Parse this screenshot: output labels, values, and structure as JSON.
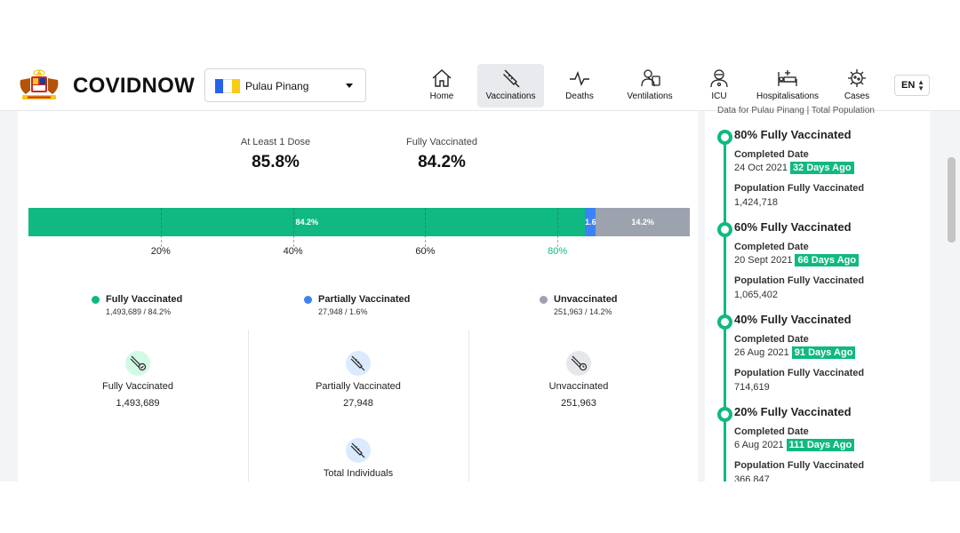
{
  "header": {
    "brand": "COVIDNOW",
    "state": "Pulau Pinang",
    "language": "EN",
    "nav": [
      {
        "label": "Home",
        "icon": "home-icon"
      },
      {
        "label": "Vaccinations",
        "icon": "syringe-icon",
        "active": true
      },
      {
        "label": "Deaths",
        "icon": "pulse-icon"
      },
      {
        "label": "Ventilations",
        "icon": "ventilator-icon"
      },
      {
        "label": "ICU",
        "icon": "doctor-icon"
      },
      {
        "label": "Hospitalisations",
        "icon": "hospital-bed-icon"
      },
      {
        "label": "Cases",
        "icon": "virus-icon"
      }
    ]
  },
  "summary": {
    "dose1_label": "At Least 1 Dose",
    "dose1_value": "85.8%",
    "full_label": "Fully Vaccinated",
    "full_value": "84.2%"
  },
  "progress": {
    "segments": [
      {
        "label": "84.2%",
        "percent": 84.2,
        "color": "#10b981"
      },
      {
        "label": "1.6",
        "percent": 1.6,
        "color": "#3b82f6"
      },
      {
        "label": "14.2%",
        "percent": 14.2,
        "color": "#9ca3af"
      }
    ],
    "ticks": [
      {
        "label": "20%",
        "value": 20,
        "color": "#222222"
      },
      {
        "label": "40%",
        "value": 40,
        "color": "#222222"
      },
      {
        "label": "60%",
        "value": 60,
        "color": "#222222"
      },
      {
        "label": "80%",
        "value": 80,
        "color": "#10b981"
      }
    ]
  },
  "legend": [
    {
      "label": "Fully Vaccinated",
      "detail": "1,493,689 / 84.2%",
      "color": "#10b981"
    },
    {
      "label": "Partially Vaccinated",
      "detail": "27,948 / 1.6%",
      "color": "#3b82f6"
    },
    {
      "label": "Unvaccinated",
      "detail": "251,963 / 14.2%",
      "color": "#9ca3af"
    }
  ],
  "columns": [
    {
      "label": "Fully Vaccinated",
      "value": "1,493,689"
    },
    {
      "label": "Partially Vaccinated",
      "value": "27,948"
    },
    {
      "label": "Unvaccinated",
      "value": "251,963"
    },
    {
      "label": "Total Individuals"
    }
  ],
  "milestones": {
    "subtitle": "Data for Pulau Pinang | Total Population",
    "items": [
      {
        "title": "80% Fully Vaccinated",
        "completed_label": "Completed Date",
        "date": "24 Oct 2021",
        "ago": "32 Days Ago",
        "pop_label": "Population Fully Vaccinated",
        "population": "1,424,718"
      },
      {
        "title": "60% Fully Vaccinated",
        "completed_label": "Completed Date",
        "date": "20 Sept 2021",
        "ago": "66 Days Ago",
        "pop_label": "Population Fully Vaccinated",
        "population": "1,065,402"
      },
      {
        "title": "40% Fully Vaccinated",
        "completed_label": "Completed Date",
        "date": "26 Aug 2021",
        "ago": "91 Days Ago",
        "pop_label": "Population Fully Vaccinated",
        "population": "714,619"
      },
      {
        "title": "20% Fully Vaccinated",
        "completed_label": "Completed Date",
        "date": "6 Aug 2021",
        "ago": "111 Days Ago",
        "pop_label": "Population Fully Vaccinated",
        "population": "366,847"
      }
    ]
  }
}
